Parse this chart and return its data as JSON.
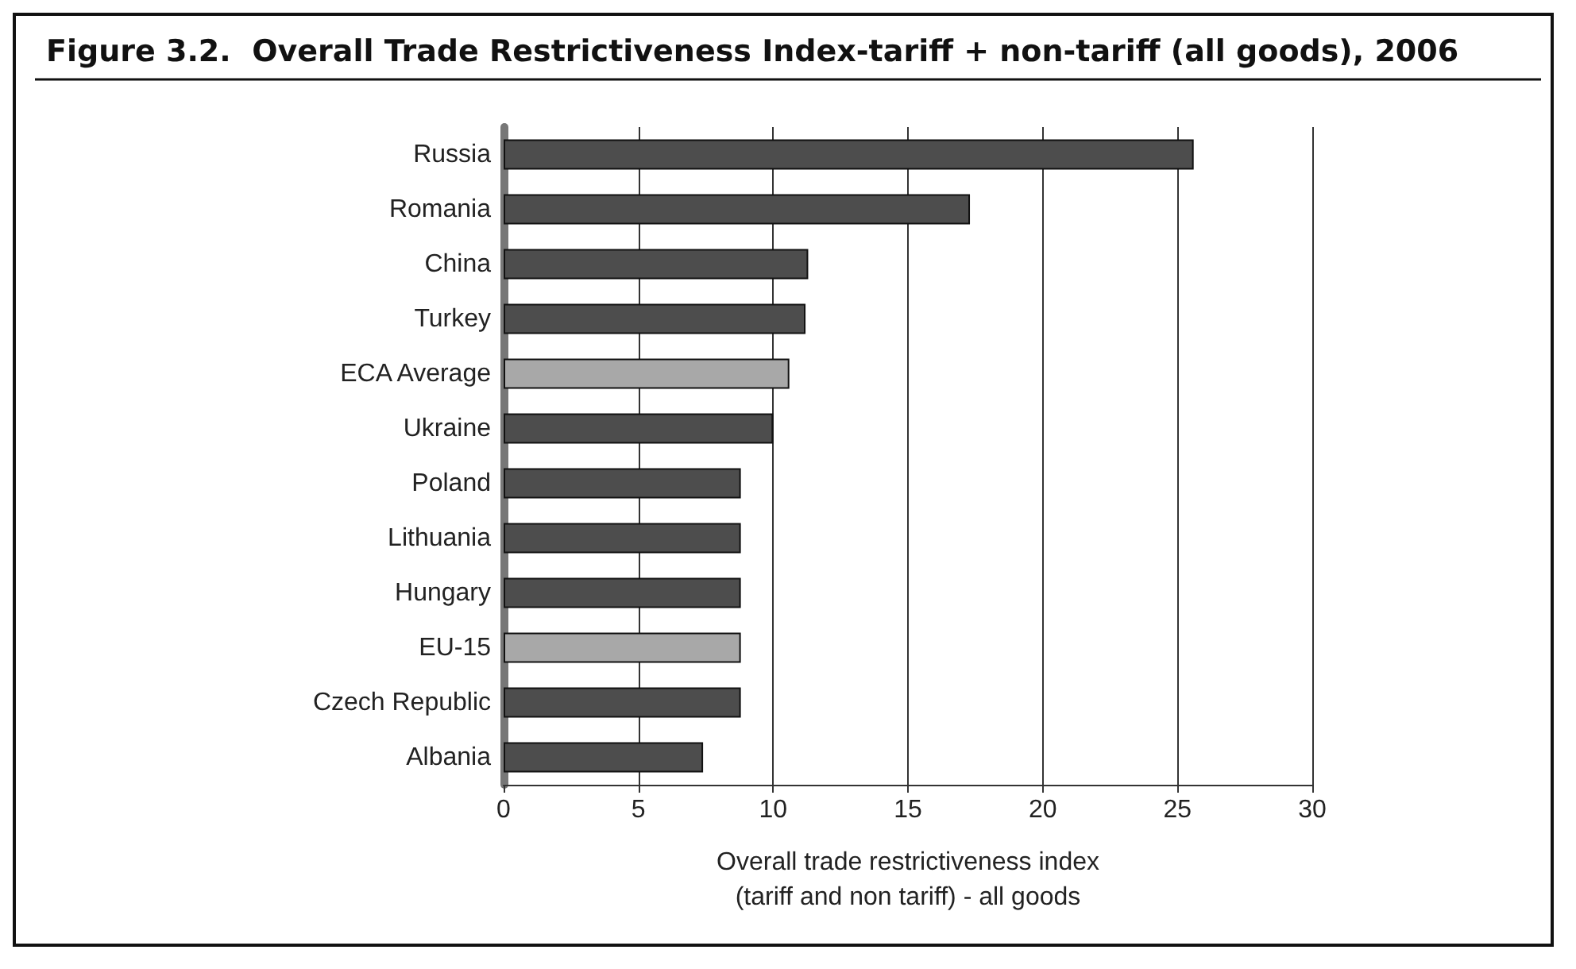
{
  "chart_data": {
    "type": "bar",
    "orientation": "horizontal",
    "title": "Figure 3.2.  Overall Trade Restrictiveness Index-tariff + non-tariff (all goods), 2006",
    "xlabel": "Overall trade restrictiveness index\n(tariff and non tariff) - all goods",
    "categories": [
      "Russia",
      "Romania",
      "China",
      "Turkey",
      "ECA Average",
      "Ukraine",
      "Poland",
      "Lithuania",
      "Hungary",
      "EU-15",
      "Czech Republic",
      "Albania"
    ],
    "values": [
      25.6,
      17.3,
      11.3,
      11.2,
      10.6,
      10.0,
      8.8,
      8.8,
      8.8,
      8.8,
      8.8,
      7.4
    ],
    "colors": [
      "#4d4d4d",
      "#4d4d4d",
      "#4d4d4d",
      "#4d4d4d",
      "#a8a8a8",
      "#4d4d4d",
      "#4d4d4d",
      "#4d4d4d",
      "#4d4d4d",
      "#a8a8a8",
      "#4d4d4d",
      "#4d4d4d"
    ],
    "xlim": [
      0,
      30
    ],
    "xticks": [
      0,
      5,
      10,
      15,
      20,
      25,
      30
    ],
    "grid": "x"
  }
}
